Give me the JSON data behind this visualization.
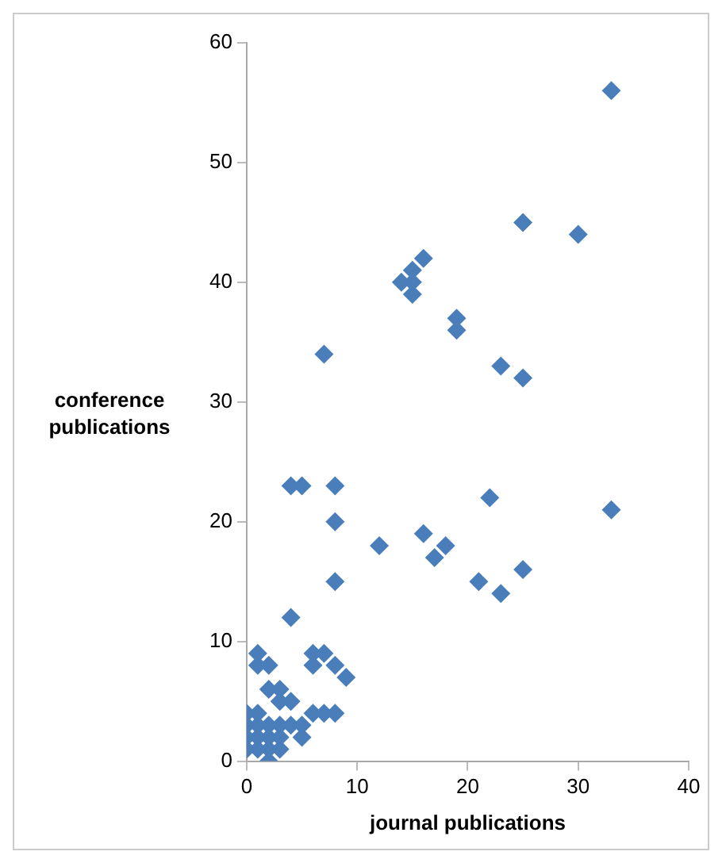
{
  "chart_data": {
    "type": "scatter",
    "xlabel": "journal publications",
    "ylabel": "conference publications",
    "marker": "diamond",
    "grid": false,
    "xlim": [
      0,
      40
    ],
    "xticks": [
      0,
      10,
      20,
      30,
      40
    ],
    "ylim": [
      0,
      60
    ],
    "yticks": [
      0,
      10,
      20,
      30,
      40,
      50,
      60
    ],
    "series": [
      {
        "color": "#4a7ebb",
        "x": [
          33,
          25,
          30,
          16,
          15,
          15,
          14,
          15,
          19,
          19,
          7,
          23,
          25,
          4,
          5,
          8,
          22,
          33,
          8,
          16,
          12,
          18,
          17,
          21,
          8,
          25,
          23,
          4,
          1,
          1,
          2,
          6,
          7,
          6,
          8,
          9,
          3,
          2,
          4,
          3,
          1,
          0,
          6,
          7,
          8,
          0,
          1,
          2,
          3,
          4,
          5,
          0,
          1,
          2,
          3,
          5,
          0,
          1,
          2,
          3,
          2
        ],
        "values": [
          56,
          45,
          44,
          42,
          41,
          40,
          40,
          39,
          37,
          36,
          34,
          33,
          32,
          23,
          23,
          23,
          22,
          21,
          20,
          19,
          18,
          18,
          17,
          15,
          15,
          16,
          14,
          12,
          9,
          8,
          8,
          9,
          9,
          8,
          8,
          7,
          6,
          6,
          5,
          5,
          4,
          4,
          4,
          4,
          4,
          3,
          3,
          3,
          3,
          3,
          3,
          2,
          2,
          2,
          2,
          2,
          1,
          1,
          1,
          1,
          0
        ]
      }
    ]
  }
}
